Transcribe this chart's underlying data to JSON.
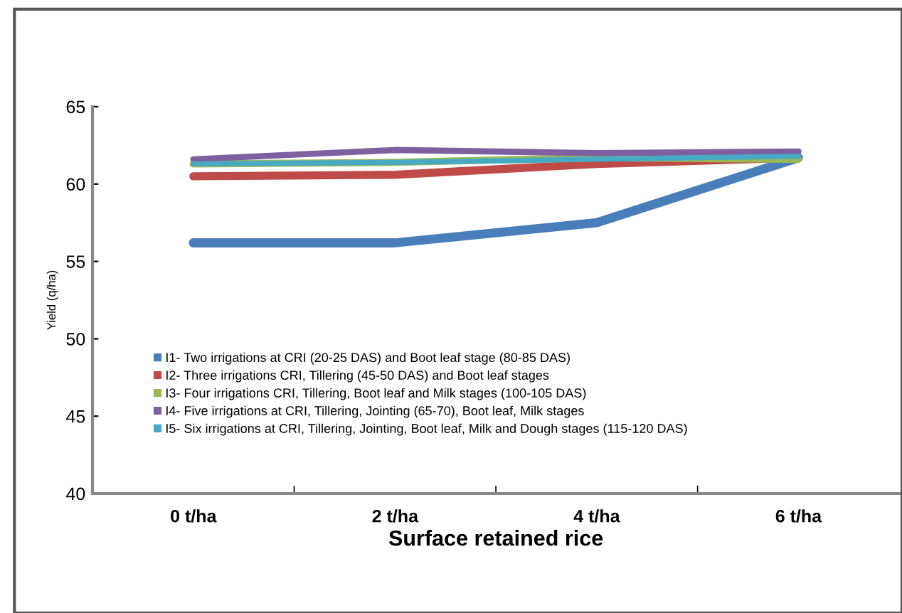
{
  "chart_data": {
    "type": "line",
    "xlabel": "Surface retained rice",
    "ylabel": "Yield (q/ha)",
    "categories": [
      "0 t/ha",
      "2 t/ha",
      "4 t/ha",
      "6 t/ha"
    ],
    "series": [
      {
        "name": "I1- Two irrigations at CRI (20-25 DAS) and Boot leaf stage (80-85 DAS)",
        "color": "#4a7ebb",
        "values": [
          56.2,
          56.2,
          57.5,
          61.7
        ]
      },
      {
        "name": "I2- Three irrigations CRI, Tillering (45-50 DAS) and Boot leaf stages",
        "color": "#be4b48",
        "values": [
          60.5,
          60.6,
          61.3,
          61.7
        ]
      },
      {
        "name": "I3- Four irrigations CRI, Tillering, Boot leaf and Milk stages (100-105 DAS)",
        "color": "#98b954",
        "values": [
          61.3,
          61.4,
          61.7,
          61.6
        ]
      },
      {
        "name": "I4- Five irrigations at CRI, Tillering, Jointing (65-70), Boot leaf, Milk stages",
        "color": "#7d60a0",
        "values": [
          61.6,
          62.2,
          62.0,
          62.1
        ]
      },
      {
        "name": "I5- Six irrigations at CRI, Tillering, Jointing, Boot leaf, Milk and Dough stages (115-120 DAS)",
        "color": "#46aac5",
        "values": [
          61.3,
          61.4,
          61.6,
          61.8
        ]
      }
    ],
    "ylim": [
      40,
      65
    ],
    "yticks": [
      40,
      45,
      50,
      55,
      60,
      65
    ],
    "grid": false,
    "legend": "bottom left",
    "marker": "none",
    "line_style": "solid"
  }
}
